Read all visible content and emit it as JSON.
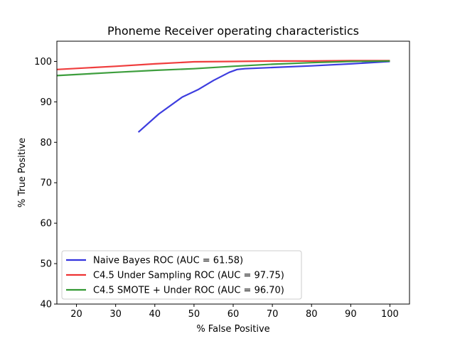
{
  "chart_data": {
    "type": "line",
    "title": "Phoneme Receiver operating characteristics",
    "xlabel": "% False Positive",
    "ylabel": "% True Positive",
    "xlim": [
      15,
      105
    ],
    "ylim": [
      40,
      105
    ],
    "xticks": [
      20,
      30,
      40,
      50,
      60,
      70,
      80,
      90,
      100
    ],
    "yticks": [
      40,
      50,
      60,
      70,
      80,
      90,
      100
    ],
    "grid": false,
    "legend_position": "lower-left",
    "series": [
      {
        "name": "Naive Bayes ROC (AUC = 61.58)",
        "color": "#3333dd",
        "x": [
          35.8,
          41,
          47,
          51,
          55,
          59,
          61,
          63,
          70,
          80,
          90,
          100
        ],
        "y": [
          82.5,
          87,
          91.2,
          93,
          95.3,
          97.3,
          98,
          98.2,
          98.5,
          98.9,
          99.4,
          100
        ]
      },
      {
        "name": "C4.5 Under Sampling ROC (AUC = 97.75)",
        "color": "#ee3333",
        "x": [
          15,
          30,
          40,
          50,
          60,
          70,
          80,
          90,
          100
        ],
        "y": [
          98,
          98.8,
          99.4,
          99.9,
          100,
          100.1,
          100.1,
          100.2,
          100.2
        ]
      },
      {
        "name": "C4.5 SMOTE + Under ROC (AUC = 96.70)",
        "color": "#339933",
        "x": [
          15,
          30,
          40,
          50,
          60,
          70,
          80,
          90,
          100
        ],
        "y": [
          96.5,
          97.3,
          97.8,
          98.2,
          98.8,
          99.3,
          99.7,
          100,
          100.1
        ]
      }
    ]
  }
}
